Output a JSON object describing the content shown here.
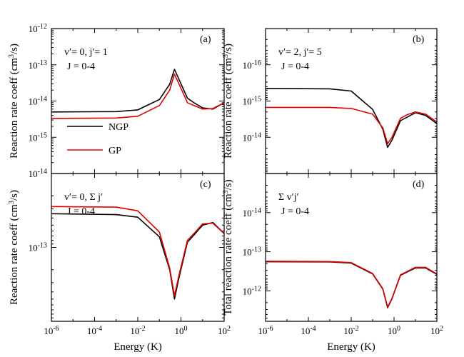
{
  "figure": {
    "x_axis_label": "Energy (K)",
    "y_axis_label_left": "Reaction rate coeff (cm3/s)",
    "y_axis_label_right_top": "Reaction rate coeff (cm3/s)",
    "y_axis_label_right_bottom": "Total reaction rate coeff (cm3/s)"
  },
  "chart_data": [
    {
      "panel": "(a)",
      "type": "line",
      "label_lines": [
        "v′= 0, j′= 1",
        "J = 0-4"
      ],
      "xscale": "log",
      "yscale": "log",
      "xlim": [
        1e-06,
        100
      ],
      "ylim": [
        1e-12,
        1e-16
      ],
      "xticks": [
        "10-6",
        "10-4",
        "10-2",
        "100",
        "102"
      ],
      "yticks": [
        "10-15",
        "10-14",
        "10-13",
        "10-12"
      ],
      "legend": {
        "placement": "lower-left",
        "entries": [
          "NGP",
          "GP"
        ]
      },
      "series": [
        {
          "name": "NGP",
          "color": "#000000",
          "x": [
            1e-06,
            0.001,
            0.01,
            0.1,
            0.3,
            0.5,
            0.8,
            2,
            4,
            10,
            30,
            100
          ],
          "y": [
            5e-15,
            5.1e-15,
            5.7e-15,
            1.1e-14,
            2.9e-14,
            7.5e-14,
            4e-14,
            1.2e-14,
            9e-15,
            6.5e-15,
            6e-15,
            9e-15
          ]
        },
        {
          "name": "GP",
          "color": "#e00000",
          "x": [
            1e-06,
            0.001,
            0.01,
            0.1,
            0.3,
            0.5,
            0.8,
            2,
            4,
            10,
            30,
            100
          ],
          "y": [
            3.3e-15,
            3.4e-15,
            3.8e-15,
            7.5e-15,
            2e-14,
            5.5e-14,
            3e-14,
            9e-15,
            7.5e-15,
            6e-15,
            6.2e-15,
            9e-15
          ]
        }
      ]
    },
    {
      "panel": "(b)",
      "type": "line",
      "label_lines": [
        "v′= 2, j′= 5",
        "J = 0-4"
      ],
      "xscale": "log",
      "yscale": "log",
      "xlim": [
        1e-06,
        100
      ],
      "ylim": [
        1e-17,
        1e-13
      ],
      "xticks": [
        "10-6",
        "10-4",
        "10-2",
        "100",
        "102"
      ],
      "yticks": [
        "10-16",
        "10-15",
        "10-14"
      ],
      "series": [
        {
          "name": "NGP",
          "color": "#000000",
          "x": [
            1e-06,
            0.001,
            0.01,
            0.1,
            0.3,
            0.5,
            0.8,
            2,
            4,
            10,
            30,
            100
          ],
          "y": [
            4.5e-16,
            4.6e-16,
            5.3e-16,
            1.7e-15,
            6e-15,
            1.9e-14,
            1.2e-14,
            3.5e-15,
            2.8e-15,
            2.1e-15,
            2.5e-15,
            4.2e-15
          ]
        },
        {
          "name": "GP",
          "color": "#e00000",
          "x": [
            1e-06,
            0.001,
            0.01,
            0.1,
            0.3,
            0.5,
            0.8,
            2,
            4,
            10,
            30,
            100
          ],
          "y": [
            1.5e-15,
            1.5e-15,
            1.6e-15,
            2.3e-15,
            5.5e-15,
            1.5e-14,
            1e-14,
            3e-15,
            2.4e-15,
            2e-15,
            2.3e-15,
            3.8e-15
          ]
        }
      ]
    },
    {
      "panel": "(c)",
      "type": "line",
      "label_lines": [
        "v′= 0, Σ j′",
        "J = 0-4"
      ],
      "xscale": "log",
      "yscale": "log",
      "xlim": [
        1e-06,
        100
      ],
      "ylim": [
        1e-14,
        1e-12
      ],
      "xticks": [
        "10-6",
        "10-4",
        "10-2",
        "100",
        "102"
      ],
      "yticks": [
        "10-14",
        "10-13"
      ],
      "series": [
        {
          "name": "NGP",
          "color": "#000000",
          "x": [
            1e-06,
            0.001,
            0.01,
            0.1,
            0.3,
            0.5,
            0.8,
            2,
            4,
            10,
            30,
            100
          ],
          "y": [
            3.5e-14,
            3.6e-14,
            3.9e-14,
            7.2e-14,
            2e-13,
            5e-13,
            2.6e-13,
            8.5e-14,
            6.8e-14,
            5e-14,
            4.6e-14,
            6.5e-14
          ]
        },
        {
          "name": "GP",
          "color": "#e00000",
          "x": [
            1e-06,
            0.001,
            0.01,
            0.1,
            0.3,
            0.5,
            0.8,
            2,
            4,
            10,
            30,
            100
          ],
          "y": [
            2.8e-14,
            2.85e-14,
            3.2e-14,
            6.2e-14,
            1.9e-13,
            4.5e-13,
            2.4e-13,
            8e-14,
            6.5e-14,
            4.8e-14,
            4.7e-14,
            6.5e-14
          ]
        }
      ]
    },
    {
      "panel": "(d)",
      "type": "line",
      "label_lines": [
        "Σ v′j′",
        "J = 0-4"
      ],
      "xscale": "log",
      "yscale": "log",
      "xlim": [
        1e-06,
        100
      ],
      "ylim": [
        1e-15,
        6e-12
      ],
      "xticks": [
        "10-6",
        "10-4",
        "10-2",
        "100",
        "102"
      ],
      "yticks": [
        "10-14",
        "10-13",
        "10-12"
      ],
      "series": [
        {
          "name": "NGP",
          "color": "#000000",
          "x": [
            1e-06,
            0.001,
            0.01,
            0.1,
            0.3,
            0.5,
            0.8,
            2,
            4,
            10,
            30,
            100
          ],
          "y": [
            1.8e-13,
            1.82e-13,
            1.95e-13,
            3.7e-13,
            9e-13,
            2.7e-12,
            1.6e-12,
            4e-13,
            3.3e-13,
            2.6e-13,
            2.6e-13,
            3.8e-13
          ]
        },
        {
          "name": "GP",
          "color": "#e00000",
          "x": [
            1e-06,
            0.001,
            0.01,
            0.1,
            0.3,
            0.5,
            0.8,
            2,
            4,
            10,
            30,
            100
          ],
          "y": [
            1.75e-13,
            1.78e-13,
            1.9e-13,
            3.6e-13,
            8.8e-13,
            2.6e-12,
            1.55e-12,
            3.9e-13,
            3.2e-13,
            2.5e-13,
            2.5e-13,
            3.7e-13
          ]
        }
      ]
    }
  ]
}
